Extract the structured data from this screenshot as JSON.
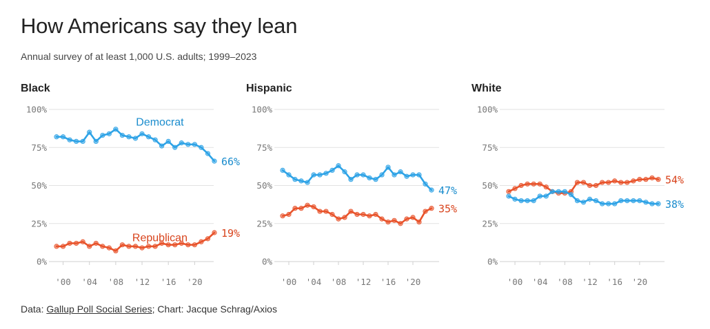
{
  "title": "How Americans say they lean",
  "subtitle": "Annual survey of at least 1,000 U.S. adults; 1999–2023",
  "footer": {
    "prefix": "Data: ",
    "source": "Gallup Poll Social Series",
    "suffix": "; Chart: Jacque Schrag/Axios"
  },
  "colors": {
    "democrat": "#2ea3e6",
    "republican": "#e8532b",
    "democrat_text": "#1a8ccd",
    "republican_text": "#d8431c"
  },
  "chart_data": [
    {
      "type": "line",
      "title": "Black",
      "x": [
        1999,
        2000,
        2001,
        2002,
        2003,
        2004,
        2005,
        2006,
        2007,
        2008,
        2009,
        2010,
        2011,
        2012,
        2013,
        2014,
        2015,
        2016,
        2017,
        2018,
        2019,
        2020,
        2021,
        2022,
        2023
      ],
      "ylim": [
        0,
        100
      ],
      "yticks": [
        "100%",
        "75%",
        "50%",
        "25%",
        "0%"
      ],
      "xticks": [
        "'00",
        "'04",
        "'08",
        "'12",
        "'16",
        "'20"
      ],
      "series": [
        {
          "name": "Democrat",
          "color": "#2ea3e6",
          "end_label": "66%",
          "values": [
            82,
            82,
            80,
            79,
            79,
            85,
            79,
            83,
            84,
            87,
            83,
            82,
            81,
            84,
            82,
            80,
            76,
            79,
            75,
            78,
            77,
            77,
            75,
            71,
            66
          ]
        },
        {
          "name": "Republican",
          "color": "#e8532b",
          "end_label": "19%",
          "values": [
            10,
            10,
            12,
            12,
            13,
            10,
            12,
            10,
            9,
            7,
            11,
            10,
            10,
            9,
            10,
            10,
            12,
            11,
            11,
            12,
            11,
            11,
            13,
            15,
            19
          ]
        }
      ]
    },
    {
      "type": "line",
      "title": "Hispanic",
      "x": [
        1999,
        2000,
        2001,
        2002,
        2003,
        2004,
        2005,
        2006,
        2007,
        2008,
        2009,
        2010,
        2011,
        2012,
        2013,
        2014,
        2015,
        2016,
        2017,
        2018,
        2019,
        2020,
        2021,
        2022,
        2023
      ],
      "ylim": [
        0,
        100
      ],
      "yticks": [
        "100%",
        "75%",
        "50%",
        "25%",
        "0%"
      ],
      "xticks": [
        "'00",
        "'04",
        "'08",
        "'12",
        "'16",
        "'20"
      ],
      "series": [
        {
          "name": "",
          "color": "#2ea3e6",
          "end_label": "47%",
          "values": [
            60,
            57,
            54,
            53,
            52,
            57,
            57,
            58,
            60,
            63,
            59,
            54,
            57,
            57,
            55,
            54,
            57,
            62,
            57,
            59,
            56,
            57,
            57,
            51,
            47
          ]
        },
        {
          "name": "",
          "color": "#e8532b",
          "end_label": "35%",
          "values": [
            30,
            31,
            35,
            35,
            37,
            36,
            33,
            33,
            31,
            28,
            29,
            33,
            31,
            31,
            30,
            31,
            28,
            26,
            27,
            25,
            28,
            29,
            26,
            33,
            35
          ]
        }
      ]
    },
    {
      "type": "line",
      "title": "White",
      "x": [
        1999,
        2000,
        2001,
        2002,
        2003,
        2004,
        2005,
        2006,
        2007,
        2008,
        2009,
        2010,
        2011,
        2012,
        2013,
        2014,
        2015,
        2016,
        2017,
        2018,
        2019,
        2020,
        2021,
        2022,
        2023
      ],
      "ylim": [
        0,
        100
      ],
      "yticks": [
        "100%",
        "75%",
        "50%",
        "25%",
        "0%"
      ],
      "xticks": [
        "'00",
        "'04",
        "'08",
        "'12",
        "'16",
        "'20"
      ],
      "series": [
        {
          "name": "",
          "color": "#e8532b",
          "end_label": "54%",
          "values": [
            46,
            48,
            50,
            51,
            51,
            51,
            49,
            46,
            45,
            45,
            46,
            52,
            52,
            50,
            50,
            52,
            52,
            53,
            52,
            52,
            53,
            54,
            54,
            55,
            54
          ]
        },
        {
          "name": "",
          "color": "#2ea3e6",
          "end_label": "38%",
          "values": [
            43,
            41,
            40,
            40,
            40,
            43,
            43,
            46,
            46,
            46,
            44,
            40,
            39,
            41,
            40,
            38,
            38,
            38,
            40,
            40,
            40,
            40,
            39,
            38,
            38
          ]
        }
      ]
    }
  ]
}
